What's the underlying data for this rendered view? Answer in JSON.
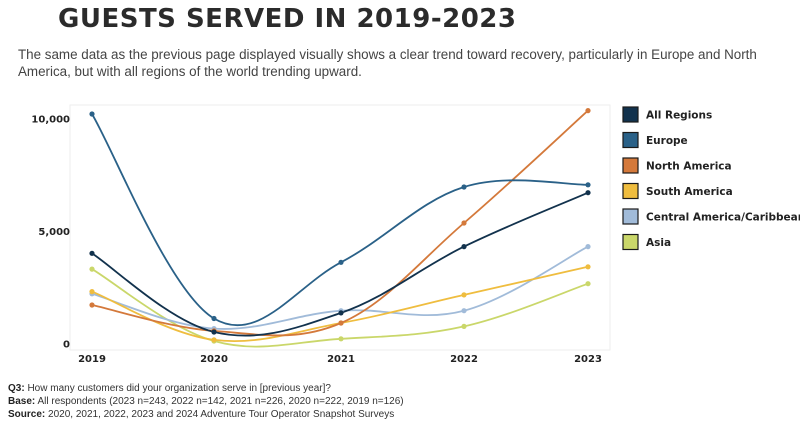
{
  "page": {
    "title": "GUESTS SERVED IN 2019-2023",
    "subtitle": "The same data as the previous page displayed visually shows a clear trend toward recovery, particularly in Europe and North America, but with all regions of the world trending upward."
  },
  "footnotes": {
    "q_label": "Q3:",
    "q_text": "How many customers did your organization serve in [previous year]?",
    "base_label": "Base:",
    "base_text": "All respondents (2023 n=243, 2022 n=142, 2021 n=226, 2020 n=222, 2019 n=126)",
    "source_label": "Source:",
    "source_text": "2020, 2021, 2022, 2023 and 2024 Adventure Tour Operator Snapshot Surveys"
  },
  "chart_data": {
    "type": "line",
    "title": "GUESTS SERVED IN 2019-2023",
    "x": [
      "2019",
      "2020",
      "2021",
      "2022",
      "2023"
    ],
    "y_ticks": [
      0,
      5000,
      10000
    ],
    "y_tick_labels": [
      "0",
      "5,000",
      "10,000"
    ],
    "ylim": [
      -300,
      10600
    ],
    "grid": false,
    "legend_position": "right",
    "series": [
      {
        "name": "All Regions",
        "color": "#12324d",
        "values": [
          4000,
          500,
          1350,
          4300,
          6700
        ]
      },
      {
        "name": "Europe",
        "color": "#2a6188",
        "values": [
          10200,
          1100,
          3600,
          6950,
          7050
        ]
      },
      {
        "name": "North America",
        "color": "#d4793b",
        "values": [
          1700,
          550,
          900,
          5350,
          10350
        ]
      },
      {
        "name": "South America",
        "color": "#efbd3f",
        "values": [
          2300,
          150,
          900,
          2150,
          3400
        ]
      },
      {
        "name": "Central America/Caribbean",
        "color": "#a1bbd9",
        "values": [
          2200,
          650,
          1450,
          1450,
          4300
        ]
      },
      {
        "name": "Asia",
        "color": "#cad76a",
        "values": [
          3300,
          100,
          200,
          750,
          2650
        ]
      }
    ]
  }
}
